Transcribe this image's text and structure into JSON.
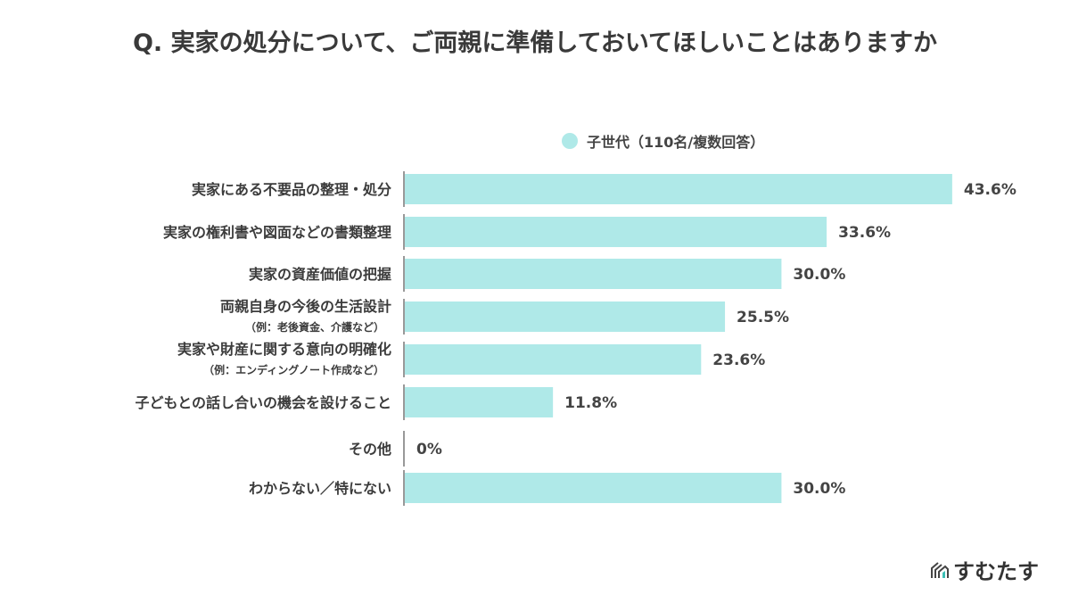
{
  "chart_data": {
    "type": "bar",
    "orientation": "horizontal",
    "title": "Q. 実家の処分について、ご両親に準備しておいてほしいことはありますか",
    "categories": [
      {
        "label": "実家にある不要品の整理・処分",
        "note": ""
      },
      {
        "label": "実家の権利書や図面などの書類整理",
        "note": ""
      },
      {
        "label": "実家の資産価値の把握",
        "note": ""
      },
      {
        "label": "両親自身の今後の生活設計",
        "note": "（例：老後資金、介護など）"
      },
      {
        "label": "実家や財産に関する意向の明確化",
        "note": "（例：エンディングノート作成など）"
      },
      {
        "label": "子どもとの話し合いの機会を設けること",
        "note": ""
      },
      {
        "label": "その他",
        "note": ""
      },
      {
        "label": "わからない／特にない",
        "note": ""
      }
    ],
    "series": [
      {
        "name": "子世代（110名/複数回答）",
        "values": [
          43.6,
          33.6,
          30.0,
          25.5,
          23.6,
          11.8,
          0,
          30.0
        ],
        "value_labels": [
          "43.6%",
          "33.6%",
          "30.0%",
          "25.5%",
          "23.6%",
          "11.8%",
          "0%",
          "30.0%"
        ],
        "color": "#afe9e8"
      }
    ],
    "xlim": [
      0,
      45
    ],
    "grid": false,
    "legend_position": "top"
  },
  "brand": {
    "logo_text": "すむたす"
  }
}
